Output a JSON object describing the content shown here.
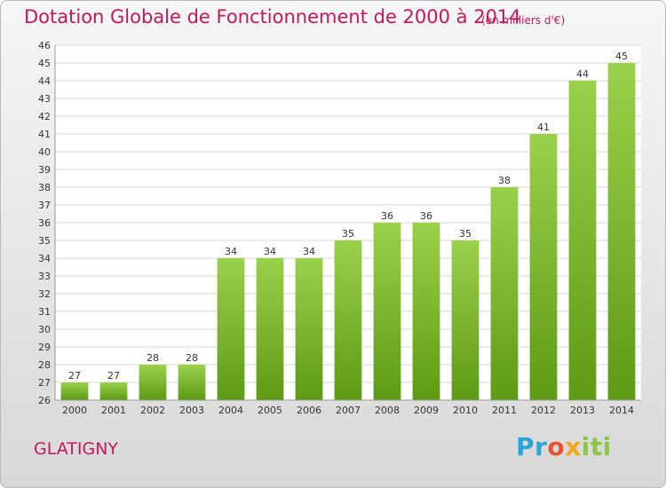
{
  "header": {
    "title": "Dotation Globale de Fonctionnement de 2000 à 2014",
    "unit": "(en milliers d'€)"
  },
  "footer": {
    "commune": "GLATIGNY",
    "logo": "Proxiti"
  },
  "colors": {
    "title": "#c2185b",
    "bar_light": "#9ad14b",
    "bar_dark": "#5f9a14",
    "grid": "#d4d4d4"
  },
  "chart_data": {
    "type": "bar",
    "title": "Dotation Globale de Fonctionnement de 2000 à 2014",
    "xlabel": "",
    "ylabel": "",
    "categories": [
      "2000",
      "2001",
      "2002",
      "2003",
      "2004",
      "2005",
      "2006",
      "2007",
      "2008",
      "2009",
      "2010",
      "2011",
      "2012",
      "2013",
      "2014"
    ],
    "values": [
      27,
      27,
      28,
      28,
      34,
      34,
      34,
      35,
      36,
      36,
      35,
      38,
      41,
      44,
      45
    ],
    "ylim": [
      26,
      46
    ],
    "yticks": [
      26,
      27,
      28,
      29,
      30,
      31,
      32,
      33,
      34,
      35,
      36,
      37,
      38,
      39,
      40,
      41,
      42,
      43,
      44,
      45,
      46
    ],
    "grid": true,
    "legend": "none"
  }
}
